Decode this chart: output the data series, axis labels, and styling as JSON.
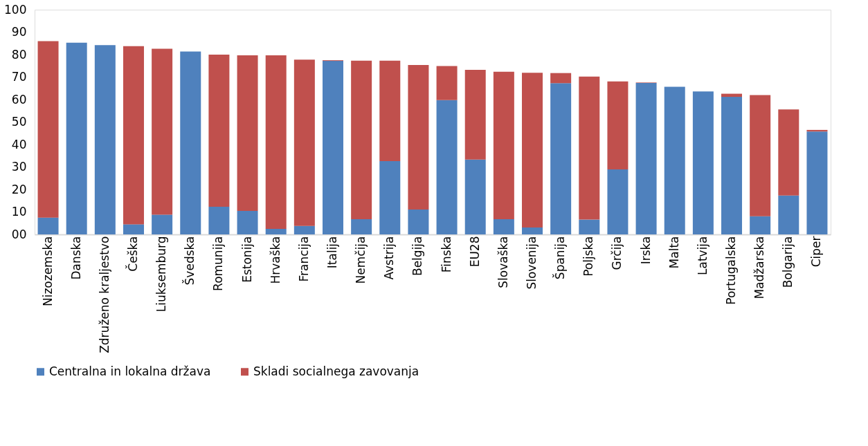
{
  "chart_data": {
    "type": "bar",
    "stacked": true,
    "categories": [
      "Nizozemska",
      "Danska",
      "Združeno kraljestvo",
      "Češka",
      "Liuksemburg",
      "Švedska",
      "Romunija",
      "Estonija",
      "Hrvaška",
      "Francija",
      "Italija",
      "Nemčija",
      "Avstrija",
      "Belgija",
      "Finska",
      "EU28",
      "Slovaška",
      "Slovenija",
      "Španija",
      "Poljska",
      "Grčija",
      "Irska",
      "Malta",
      "Latvija",
      "Portugalska",
      "Madžarska",
      "Bolgarija",
      "Ciper"
    ],
    "series": [
      {
        "name": "Centralna in lokalna država",
        "color": "#4f81bd",
        "values": [
          7.5,
          85.3,
          84.2,
          4.5,
          8.8,
          81.4,
          12.3,
          10.5,
          2.5,
          3.8,
          77.2,
          6.8,
          32.6,
          11.1,
          59.8,
          33.3,
          6.8,
          3.1,
          67.3,
          6.6,
          28.9,
          67.4,
          65.7,
          63.6,
          61.2,
          8.1,
          17.3,
          45.8
        ]
      },
      {
        "name": "Skladi socialnega zavovanja",
        "color": "#c0504d",
        "values": [
          78.5,
          0,
          0,
          79.3,
          73.8,
          0,
          67.7,
          69.2,
          77.2,
          74,
          0.3,
          70.5,
          44.7,
          64.3,
          15.1,
          39.9,
          65.6,
          68.8,
          4.5,
          63.6,
          39.2,
          0.2,
          0,
          0,
          1.4,
          53.9,
          38.3,
          0.7
        ]
      }
    ],
    "ylim": [
      0,
      100
    ],
    "yticks": [
      {
        "value": 0,
        "label": "00"
      },
      10,
      20,
      30,
      40,
      50,
      60,
      70,
      80,
      90,
      100
    ],
    "grid": false,
    "legend": "bottom"
  }
}
